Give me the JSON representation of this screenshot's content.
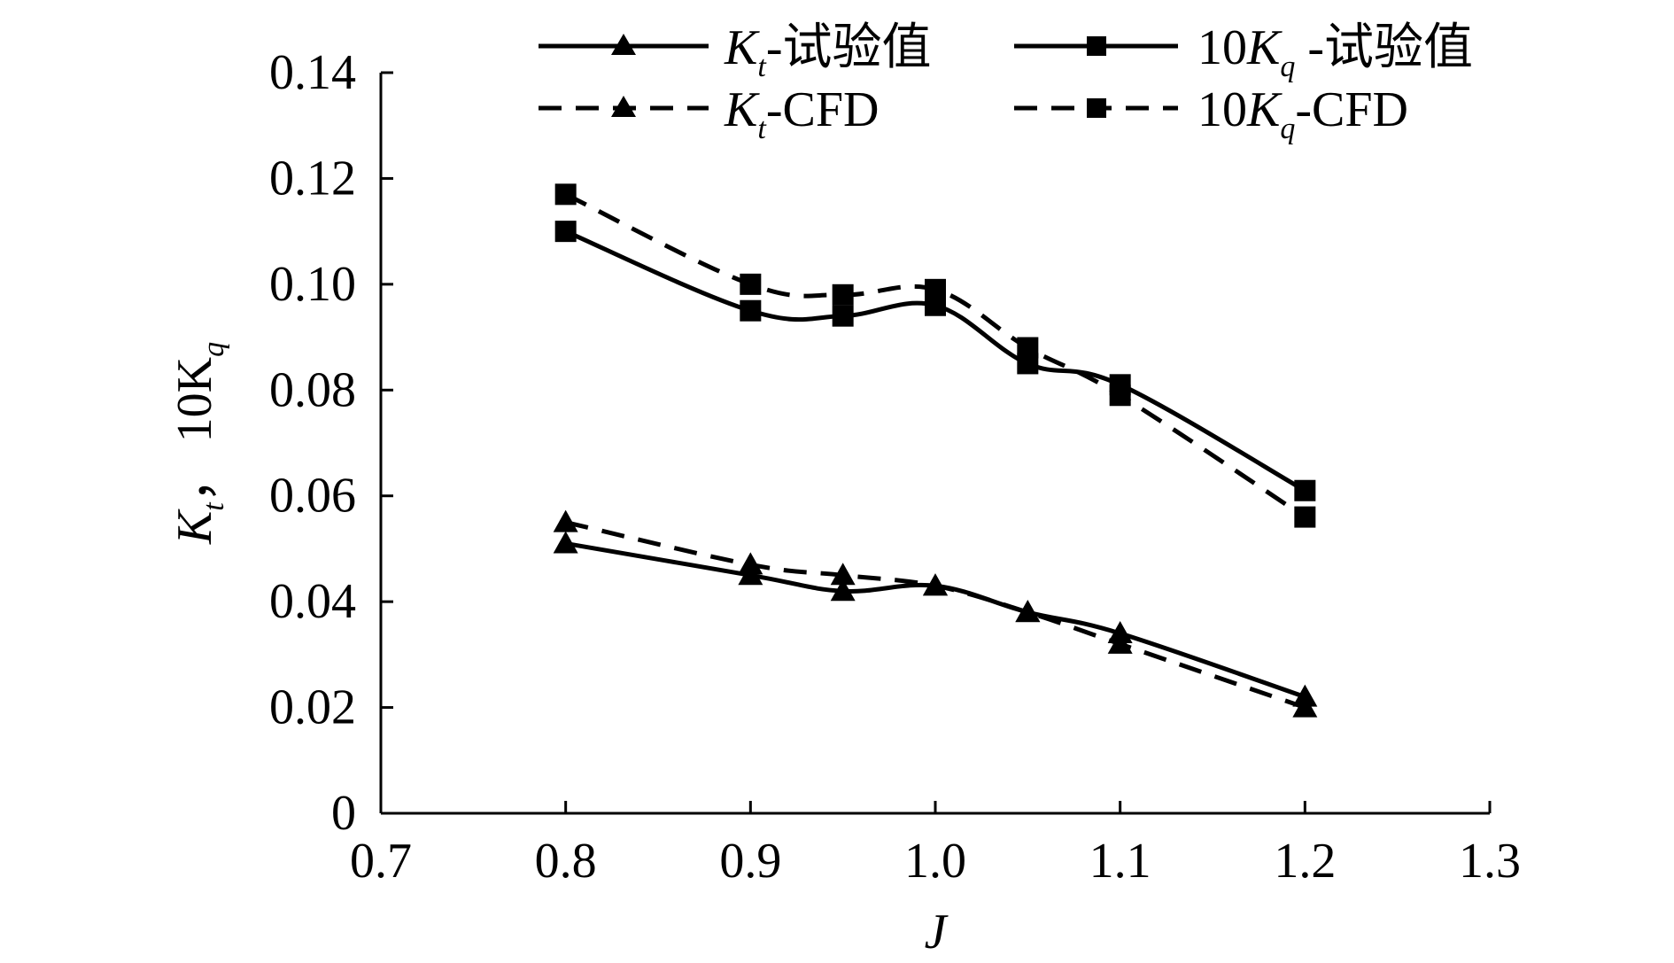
{
  "chart_data": {
    "type": "line",
    "xlabel": "J",
    "ylabel": {
      "k1": "K",
      "s1": "t",
      "sep": "，",
      "k2": "10K",
      "s2": "q"
    },
    "xlim": [
      0.7,
      1.3
    ],
    "ylim": [
      0,
      0.14
    ],
    "x_ticks": [
      "0.7",
      "0.8",
      "0.9",
      "1.0",
      "1.1",
      "1.2",
      "1.3"
    ],
    "y_ticks": [
      "0",
      "0.02",
      "0.04",
      "0.06",
      "0.08",
      "0.10",
      "0.12",
      "0.14"
    ],
    "x": [
      0.8,
      0.9,
      0.95,
      1.0,
      1.05,
      1.1,
      1.2
    ],
    "series": [
      {
        "id": "kt-exp",
        "marker": "triangle",
        "style": "solid",
        "legend": {
          "pre": "",
          "k": "K",
          "sub": "t",
          "post": "-试验值"
        },
        "values": [
          0.051,
          0.045,
          0.042,
          0.043,
          0.038,
          0.034,
          0.022
        ]
      },
      {
        "id": "kt-cfd",
        "marker": "triangle",
        "style": "dashed",
        "legend": {
          "pre": "",
          "k": "K",
          "sub": "t",
          "post": "-CFD"
        },
        "values": [
          0.055,
          0.047,
          0.045,
          0.043,
          0.038,
          0.032,
          0.02
        ]
      },
      {
        "id": "kq-exp",
        "marker": "square",
        "style": "solid",
        "legend": {
          "pre": "10",
          "k": "K",
          "sub": "q",
          "post": " -试验值"
        },
        "values": [
          0.11,
          0.095,
          0.094,
          0.096,
          0.085,
          0.081,
          0.061
        ]
      },
      {
        "id": "kq-cfd",
        "marker": "square",
        "style": "dashed",
        "legend": {
          "pre": "10",
          "k": "K",
          "sub": "q",
          "post": "-CFD"
        },
        "values": [
          0.117,
          0.1,
          0.098,
          0.099,
          0.088,
          0.079,
          0.056
        ]
      }
    ]
  }
}
